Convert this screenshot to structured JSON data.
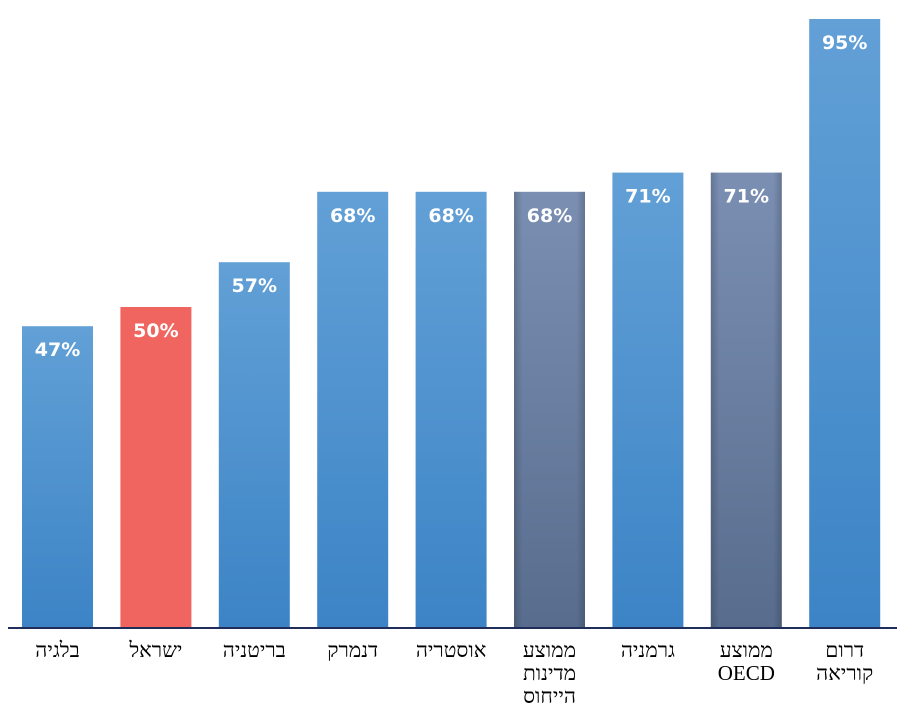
{
  "chart_data": {
    "type": "bar",
    "categories": [
      [
        "בלגיה"
      ],
      [
        "ישראל"
      ],
      [
        "בריטניה"
      ],
      [
        "דנמרק"
      ],
      [
        "אוסטריה"
      ],
      [
        "ממוצע",
        "מדינות",
        "הייחוס"
      ],
      [
        "גרמניה"
      ],
      [
        "ממוצע",
        "OECD"
      ],
      [
        "דרום",
        "קוריאה"
      ]
    ],
    "values": [
      47,
      50,
      57,
      68,
      68,
      68,
      71,
      71,
      95
    ],
    "value_labels": [
      "47%",
      "50%",
      "57%",
      "68%",
      "68%",
      "68%",
      "71%",
      "71%",
      "95%"
    ],
    "bar_kinds": [
      "country",
      "highlight",
      "country",
      "country",
      "country",
      "average",
      "country",
      "average",
      "country"
    ],
    "ylim": [
      0,
      100
    ],
    "grid": false,
    "legend": "none",
    "title": "",
    "xlabel": "",
    "ylabel": ""
  },
  "colors": {
    "country_top": "#62a0d6",
    "country_bottom": "#3c84c6",
    "highlight": "#f0655f",
    "average_top": "#7a8fb2",
    "average_bottom": "#586d8e",
    "axis": "#1f2d5a"
  }
}
